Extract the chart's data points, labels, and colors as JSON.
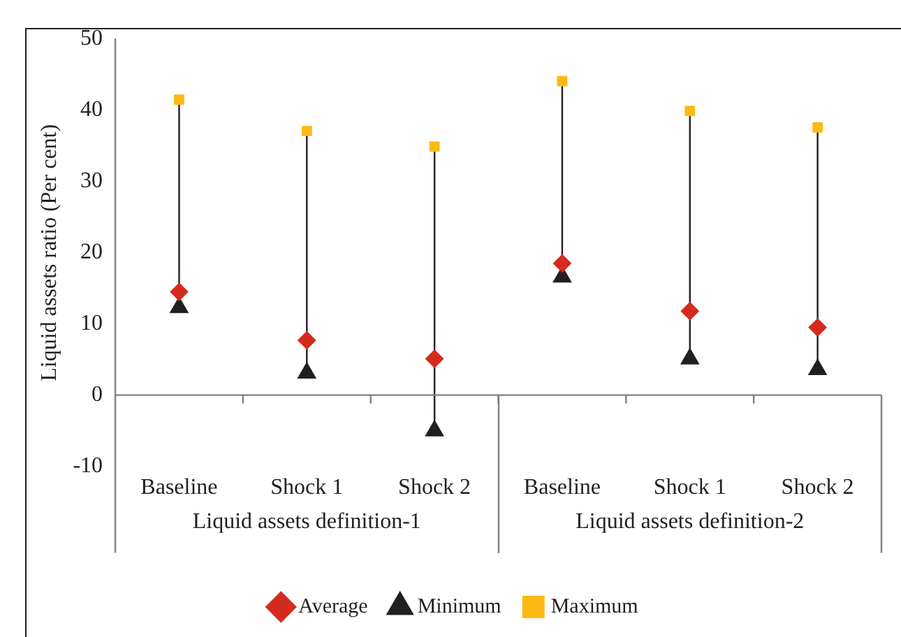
{
  "chart_data": {
    "type": "scatter",
    "ylabel": "Liquid assets ratio (Per cent)",
    "categories": [
      "Baseline",
      "Shock 1",
      "Shock 2",
      "Baseline",
      "Shock 1",
      "Shock 2"
    ],
    "annotations": [
      "Liquid assets definition-1",
      "Liquid assets definition-2"
    ],
    "series": [
      {
        "name": "Average",
        "color": "#d52b1e",
        "marker": "diamond",
        "values": [
          14.5,
          7.7,
          5.1,
          18.5,
          11.8,
          9.5
        ]
      },
      {
        "name": "Minimum",
        "color": "#231f20",
        "marker": "triangle",
        "values": [
          12.3,
          3.1,
          -5.0,
          16.6,
          5.1,
          3.6
        ]
      },
      {
        "name": "Maximum",
        "color": "#fdb913",
        "marker": "square",
        "values": [
          41.5,
          37.1,
          34.9,
          44.1,
          39.9,
          37.6
        ]
      }
    ],
    "ylim": [
      -10,
      50
    ],
    "yticks": [
      -10,
      0,
      10,
      20,
      30,
      40,
      50
    ],
    "ref_lines": [
      {
        "axis": "y",
        "value": 0,
        "color": "#808080"
      }
    ],
    "grid": false,
    "legend": "bottom"
  }
}
